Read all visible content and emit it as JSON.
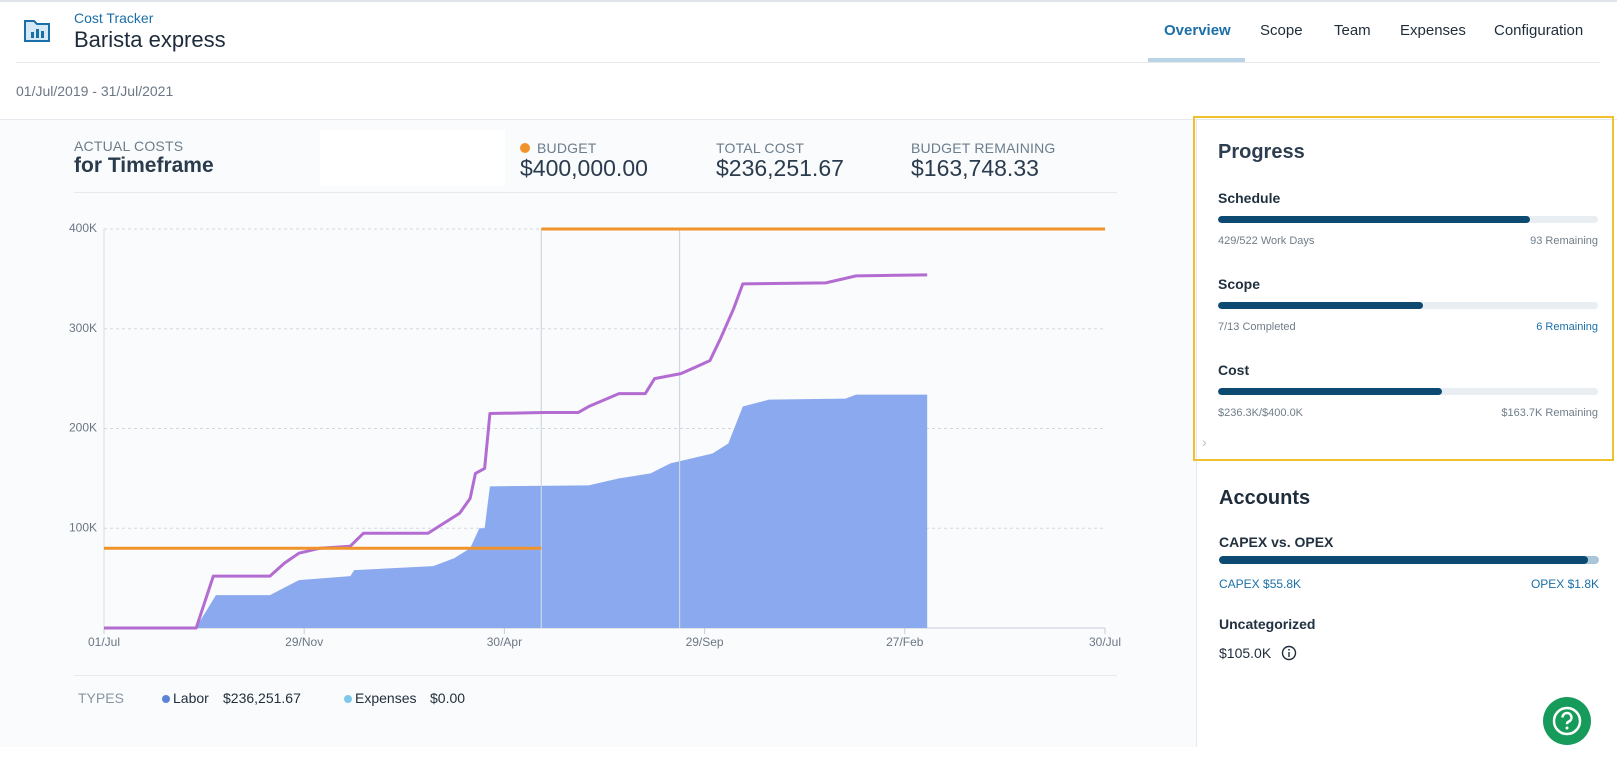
{
  "header": {
    "app": "Cost Tracker",
    "project": "Barista express",
    "tabs": [
      "Overview",
      "Scope",
      "Team",
      "Expenses",
      "Configuration"
    ]
  },
  "date_range": "01/Jul/2019 - 31/Jul/2021",
  "summary": {
    "title_top": "ACTUAL COSTS",
    "title_bottom": "for Timeframe",
    "stats": [
      {
        "label": "BUDGET",
        "value": "$400,000.00",
        "dot_color": "#f0932b"
      },
      {
        "label": "TOTAL COST",
        "value": "$236,251.67"
      },
      {
        "label": "BUDGET REMAINING",
        "value": "$163,748.33"
      }
    ]
  },
  "chart_data": {
    "type": "line",
    "xlim": [
      0,
      760
    ],
    "xticks": [
      {
        "value": 0,
        "label": "01/Jul"
      },
      {
        "value": 152,
        "label": "29/Nov"
      },
      {
        "value": 304,
        "label": "30/Apr"
      },
      {
        "value": 456,
        "label": "29/Sep"
      },
      {
        "value": 608,
        "label": "27/Feb"
      },
      {
        "value": 760,
        "label": "30/Jul"
      }
    ],
    "ylim": [
      0,
      400000
    ],
    "yticks": [
      {
        "value": 100000,
        "label": "100K"
      },
      {
        "value": 200000,
        "label": "200K"
      },
      {
        "value": 300000,
        "label": "300K"
      },
      {
        "value": 400000,
        "label": "400K"
      }
    ],
    "grid": true,
    "markers": [
      332,
      437
    ],
    "series": [
      {
        "kind": "area",
        "color": "#8aa9ef",
        "x": [
          0,
          70,
          72,
          85,
          126,
          148,
          187,
          190,
          250,
          266,
          278,
          285,
          289,
          293,
          368,
          391,
          415,
          430,
          462,
          474,
          485,
          505,
          563,
          571,
          625
        ],
        "values": [
          0,
          0,
          5000,
          33000,
          33000,
          48000,
          52000,
          58000,
          62000,
          70000,
          80000,
          100000,
          100000,
          142000,
          143000,
          150000,
          155000,
          165000,
          175000,
          185000,
          222000,
          229000,
          230000,
          234000,
          234000
        ]
      },
      {
        "kind": "line",
        "color": "#b36cd1",
        "x": [
          0,
          70,
          83,
          126,
          137,
          148,
          164,
          187,
          197,
          246,
          258,
          270,
          278,
          282,
          289,
          293,
          334,
          360,
          368,
          391,
          411,
          418,
          438,
          450,
          460,
          468,
          478,
          485,
          548,
          571,
          625
        ],
        "values": [
          0,
          0,
          52000,
          52000,
          65000,
          75000,
          80000,
          82000,
          95000,
          95000,
          105000,
          115000,
          130000,
          155000,
          160000,
          215000,
          216000,
          216000,
          222000,
          235000,
          235000,
          250000,
          255000,
          262000,
          268000,
          290000,
          320000,
          345000,
          346000,
          353000,
          354000
        ]
      },
      {
        "kind": "line",
        "color": "#f0932b",
        "x": [
          0,
          332,
          332,
          332,
          760
        ],
        "values": [
          80000,
          80000,
          null,
          400000,
          400000
        ]
      }
    ]
  },
  "types": {
    "label": "TYPES",
    "items": [
      {
        "name": "Labor",
        "value": "$236,251.67",
        "color": "#5b84d6"
      },
      {
        "name": "Expenses",
        "value": "$0.00",
        "color": "#7dc8ea"
      }
    ]
  },
  "progress": {
    "title": "Progress",
    "items": [
      {
        "name": "Schedule",
        "left": "429/522 Work Days",
        "right": "93 Remaining",
        "percent": 82
      },
      {
        "name": "Scope",
        "left": "7/13 Completed",
        "right": "6 Remaining",
        "percent": 54
      },
      {
        "name": "Cost",
        "left": "$236.3K/$400.0K",
        "right": "$163.7K Remaining",
        "percent": 59
      }
    ]
  },
  "accounts": {
    "title": "Accounts",
    "subtitle": "CAPEX vs. OPEX",
    "capex_percent": 97,
    "capex": "CAPEX $55.8K",
    "opex": "OPEX $1.8K",
    "uncategorized_label": "Uncategorized",
    "uncategorized_value": "$105.0K"
  }
}
